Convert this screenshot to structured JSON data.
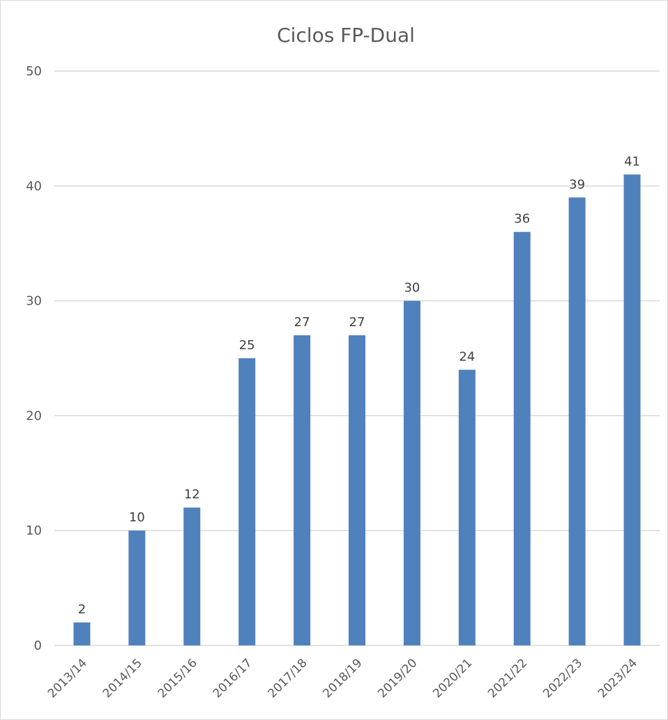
{
  "chart_data": {
    "type": "bar",
    "title": "Ciclos FP-Dual",
    "xlabel": "",
    "ylabel": "",
    "categories": [
      "2013/14",
      "2014/15",
      "2015/16",
      "2016/17",
      "2017/18",
      "2018/19",
      "2019/20",
      "2020/21",
      "2021/22",
      "2022/23",
      "2023/24"
    ],
    "values": [
      2,
      10,
      12,
      25,
      27,
      27,
      30,
      24,
      36,
      39,
      41
    ],
    "ylim": [
      0,
      50
    ],
    "yticks": [
      0,
      10,
      20,
      30,
      40,
      50
    ],
    "grid": true,
    "data_labels": true,
    "legend": "none",
    "colors": {
      "bar": "#4F81BD",
      "grid": "#d9d9d9",
      "text": "#595959"
    }
  }
}
